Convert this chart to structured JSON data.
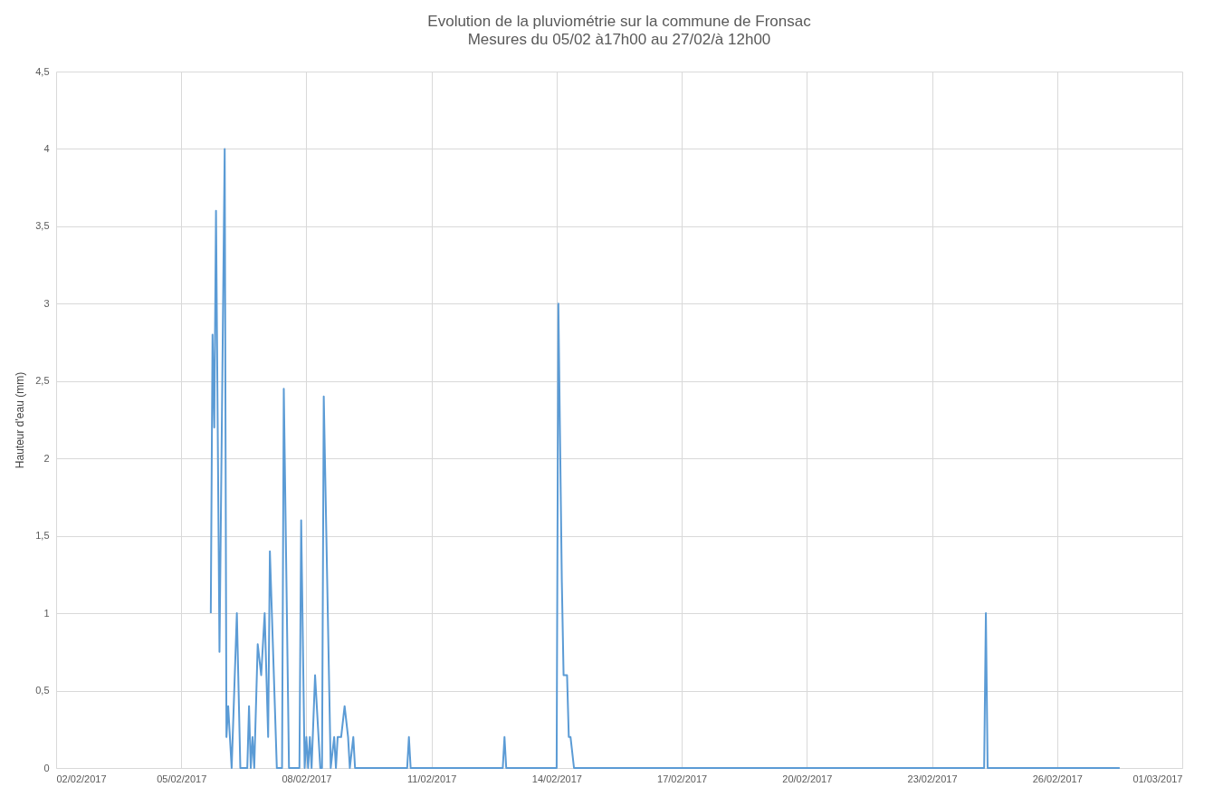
{
  "chart_data": {
    "type": "line",
    "title": "Evolution de la pluviométrie sur la commune de Fronsac",
    "subtitle": "Mesures du 05/02 à17h00 au 27/02/à 12h00",
    "ylabel": "Hauteur d'eau (mm)",
    "xlim": [
      "2017-02-02",
      "2017-03-01"
    ],
    "xticks": [
      {
        "value": "2017-02-02",
        "label": "02/02/2017"
      },
      {
        "value": "2017-02-05",
        "label": "05/02/2017"
      },
      {
        "value": "2017-02-08",
        "label": "08/02/2017"
      },
      {
        "value": "2017-02-11",
        "label": "11/02/2017"
      },
      {
        "value": "2017-02-14",
        "label": "14/02/2017"
      },
      {
        "value": "2017-02-17",
        "label": "17/02/2017"
      },
      {
        "value": "2017-02-20",
        "label": "20/02/2017"
      },
      {
        "value": "2017-02-23",
        "label": "23/02/2017"
      },
      {
        "value": "2017-02-26",
        "label": "26/02/2017"
      },
      {
        "value": "2017-03-01",
        "label": "01/03/2017"
      }
    ],
    "ylim": [
      0,
      4.5
    ],
    "yticks": [
      0,
      {
        "value": 0.5,
        "label": "0,5"
      },
      1,
      {
        "value": 1.5,
        "label": "1,5"
      },
      2,
      {
        "value": 2.5,
        "label": "2,5"
      },
      3,
      {
        "value": 3.5,
        "label": "3,5"
      },
      4,
      {
        "value": 4.5,
        "label": "4,5"
      }
    ],
    "grid": true,
    "marker": "none",
    "line_style": "solid",
    "series": [
      {
        "color": "#5b9bd5",
        "x": [
          "2017-02-05T17:00",
          "2017-02-05T18:00",
          "2017-02-05T19:00",
          "2017-02-05T20:00",
          "2017-02-05T22:00",
          "2017-02-06T01:00",
          "2017-02-06T02:00",
          "2017-02-06T03:00",
          "2017-02-06T05:00",
          "2017-02-06T08:00",
          "2017-02-06T10:00",
          "2017-02-06T14:00",
          "2017-02-06T15:00",
          "2017-02-06T16:00",
          "2017-02-06T17:00",
          "2017-02-06T18:00",
          "2017-02-06T20:00",
          "2017-02-06T22:00",
          "2017-02-07T00:00",
          "2017-02-07T02:00",
          "2017-02-07T03:00",
          "2017-02-07T07:00",
          "2017-02-07T10:00",
          "2017-02-07T11:00",
          "2017-02-07T14:00",
          "2017-02-07T20:00",
          "2017-02-07T21:00",
          "2017-02-07T23:00",
          "2017-02-08T00:00",
          "2017-02-08T01:00",
          "2017-02-08T02:00",
          "2017-02-08T03:00",
          "2017-02-08T05:00",
          "2017-02-08T08:00",
          "2017-02-08T09:00",
          "2017-02-08T10:00",
          "2017-02-08T14:00",
          "2017-02-08T16:00",
          "2017-02-08T17:00",
          "2017-02-08T18:00",
          "2017-02-08T20:00",
          "2017-02-08T22:00",
          "2017-02-09T00:00",
          "2017-02-09T01:00",
          "2017-02-09T03:00",
          "2017-02-09T04:00",
          "2017-02-10T10:00",
          "2017-02-10T11:00",
          "2017-02-10T12:00",
          "2017-02-12T17:00",
          "2017-02-12T18:00",
          "2017-02-12T19:00",
          "2017-02-14T00:00",
          "2017-02-14T01:00",
          "2017-02-14T03:00",
          "2017-02-14T04:00",
          "2017-02-14T06:00",
          "2017-02-14T07:00",
          "2017-02-14T08:00",
          "2017-02-14T10:00",
          "2017-02-24T06:00",
          "2017-02-24T07:00",
          "2017-02-24T08:00",
          "2017-02-27T12:00"
        ],
        "values": [
          1.0,
          2.8,
          2.2,
          3.6,
          0.75,
          4.0,
          0.2,
          0.4,
          0,
          1.0,
          0,
          0,
          0.4,
          0,
          0.2,
          0,
          0.8,
          0.6,
          1.0,
          0.2,
          1.4,
          0,
          0,
          2.45,
          0,
          0,
          1.6,
          0,
          0.2,
          0,
          0.2,
          0,
          0.6,
          0,
          0,
          2.4,
          0,
          0.2,
          0,
          0.2,
          0.2,
          0.4,
          0.2,
          0,
          0.2,
          0,
          0,
          0.2,
          0,
          0,
          0.2,
          0,
          0,
          3.0,
          1.2,
          0.6,
          0.6,
          0.2,
          0.2,
          0,
          0,
          1.0,
          0,
          0
        ]
      }
    ]
  }
}
